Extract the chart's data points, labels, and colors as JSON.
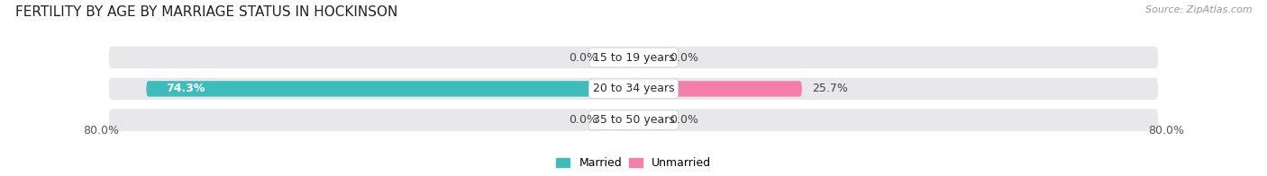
{
  "title": "FERTILITY BY AGE BY MARRIAGE STATUS IN HOCKINSON",
  "source": "Source: ZipAtlas.com",
  "categories": [
    "15 to 19 years",
    "20 to 34 years",
    "35 to 50 years"
  ],
  "married_values": [
    0.0,
    74.3,
    0.0
  ],
  "unmarried_values": [
    0.0,
    25.7,
    0.0
  ],
  "x_left_label": "80.0%",
  "x_right_label": "80.0%",
  "married_color": "#3ebcbc",
  "unmarried_color": "#f47faa",
  "bar_bg_color": "#e8e8ea",
  "title_fontsize": 11,
  "source_fontsize": 8,
  "cat_label_fontsize": 9,
  "val_label_fontsize": 9,
  "tick_fontsize": 9,
  "legend_fontsize": 9,
  "background_color": "#ffffff",
  "fig_width": 14.06,
  "fig_height": 1.96
}
